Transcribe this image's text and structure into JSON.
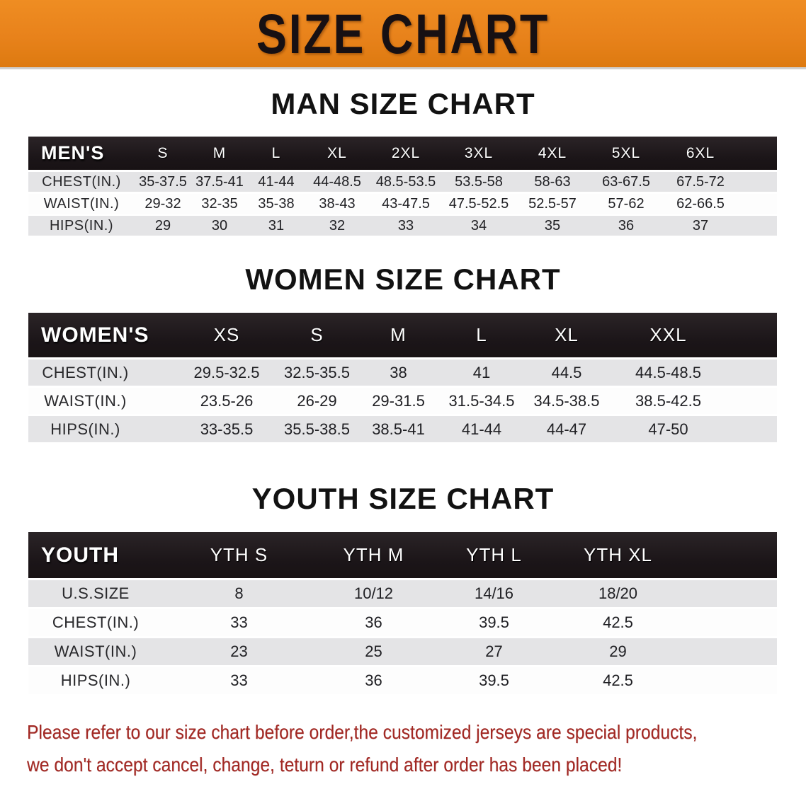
{
  "banner": {
    "title": "SIZE CHART",
    "bg_color": "#e8821b",
    "text_color": "#171013"
  },
  "charts": [
    {
      "id": "men",
      "heading": "MAN SIZE CHART",
      "group_label": "MEN'S",
      "sizes": [
        "S",
        "M",
        "L",
        "XL",
        "2XL",
        "3XL",
        "4XL",
        "5XL",
        "6XL"
      ],
      "rows": [
        {
          "label": "CHEST(IN.)",
          "values": [
            "35-37.5",
            "37.5-41",
            "41-44",
            "44-48.5",
            "48.5-53.5",
            "53.5-58",
            "58-63",
            "63-67.5",
            "67.5-72"
          ]
        },
        {
          "label": "WAIST(IN.)",
          "values": [
            "29-32",
            "32-35",
            "35-38",
            "38-43",
            "43-47.5",
            "47.5-52.5",
            "52.5-57",
            "57-62",
            "62-66.5"
          ]
        },
        {
          "label": "HIPS(IN.)",
          "values": [
            "29",
            "30",
            "31",
            "32",
            "33",
            "34",
            "35",
            "36",
            "37"
          ]
        }
      ]
    },
    {
      "id": "women",
      "heading": "WOMEN SIZE CHART",
      "group_label": "WOMEN'S",
      "sizes": [
        "XS",
        "S",
        "M",
        "L",
        "XL",
        "XXL"
      ],
      "rows": [
        {
          "label": "CHEST(IN.)",
          "values": [
            "29.5-32.5",
            "32.5-35.5",
            "38",
            "41",
            "44.5",
            "44.5-48.5"
          ]
        },
        {
          "label": "WAIST(IN.)",
          "values": [
            "23.5-26",
            "26-29",
            "29-31.5",
            "31.5-34.5",
            "34.5-38.5",
            "38.5-42.5"
          ]
        },
        {
          "label": "HIPS(IN.)",
          "values": [
            "33-35.5",
            "35.5-38.5",
            "38.5-41",
            "41-44",
            "44-47",
            "47-50"
          ]
        }
      ]
    },
    {
      "id": "youth",
      "heading": "YOUTH SIZE CHART",
      "group_label": "YOUTH",
      "sizes": [
        "YTH S",
        "YTH M",
        "YTH L",
        "YTH XL"
      ],
      "rows": [
        {
          "label": "U.S.SIZE",
          "values": [
            "8",
            "10/12",
            "14/16",
            "18/20"
          ]
        },
        {
          "label": "CHEST(IN.)",
          "values": [
            "33",
            "36",
            "39.5",
            "42.5"
          ]
        },
        {
          "label": "WAIST(IN.)",
          "values": [
            "23",
            "25",
            "27",
            "29"
          ]
        },
        {
          "label": "HIPS(IN.)",
          "values": [
            "33",
            "36",
            "39.5",
            "42.5"
          ]
        }
      ]
    }
  ],
  "disclaimer": {
    "lines": [
      "Please refer to our size chart before order,the customized jerseys are special products,",
      "we don't accept cancel, change, teturn or refund after order has been placed!"
    ],
    "color": "#a22823"
  },
  "colors": {
    "banner_orange": "#e8821b",
    "header_bar_black": "#1b1518",
    "stripe_gray": "#e4e4e6",
    "disclaimer_red": "#a22823"
  }
}
